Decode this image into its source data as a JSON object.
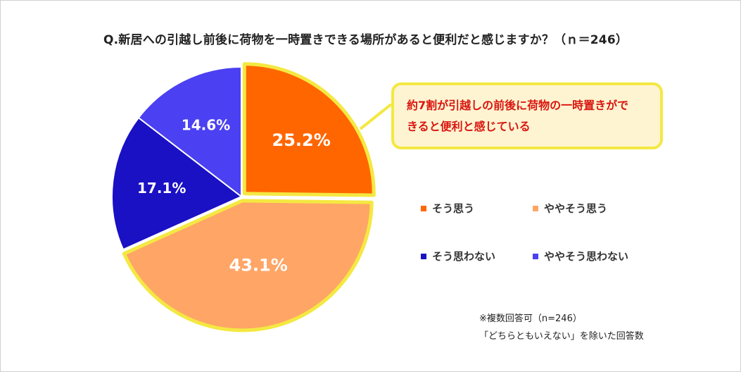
{
  "title": "Q.新居への引越し前後に荷物を一時置きできる場所があると便利だと感じますか？（ｎ＝246）",
  "callout": {
    "line1": "約7割が引越しの前後に荷物の一時置きがで",
    "line2": "きると便利と感じている"
  },
  "notes": {
    "line1": "※複数回答可（n=246）",
    "line2": "「どちらともいえない」を除いた回答数"
  },
  "colors": {
    "highlight": "#f4e842",
    "callout_bg": "#fff4d2",
    "callout_text": "#d9160f"
  },
  "chart_data": {
    "type": "pie",
    "title": "Q.新居への引越し前後に荷物を一時置きできる場所があると便利だと感じますか？（ｎ＝246）",
    "n": 246,
    "slices": [
      {
        "name": "そう思う",
        "value": 25.2,
        "label": "25.2%",
        "color": "#ff6600"
      },
      {
        "name": "ややそう思う",
        "value": 43.1,
        "label": "43.1%",
        "color": "#ffa566"
      },
      {
        "name": "そう思わない",
        "value": 17.1,
        "label": "17.1%",
        "color": "#1a10c4"
      },
      {
        "name": "ややそう思わない",
        "value": 14.6,
        "label": "14.6%",
        "color": "#4b40f2"
      }
    ],
    "highlighted": [
      "そう思う",
      "ややそう思う"
    ],
    "legend_placement": "right"
  }
}
